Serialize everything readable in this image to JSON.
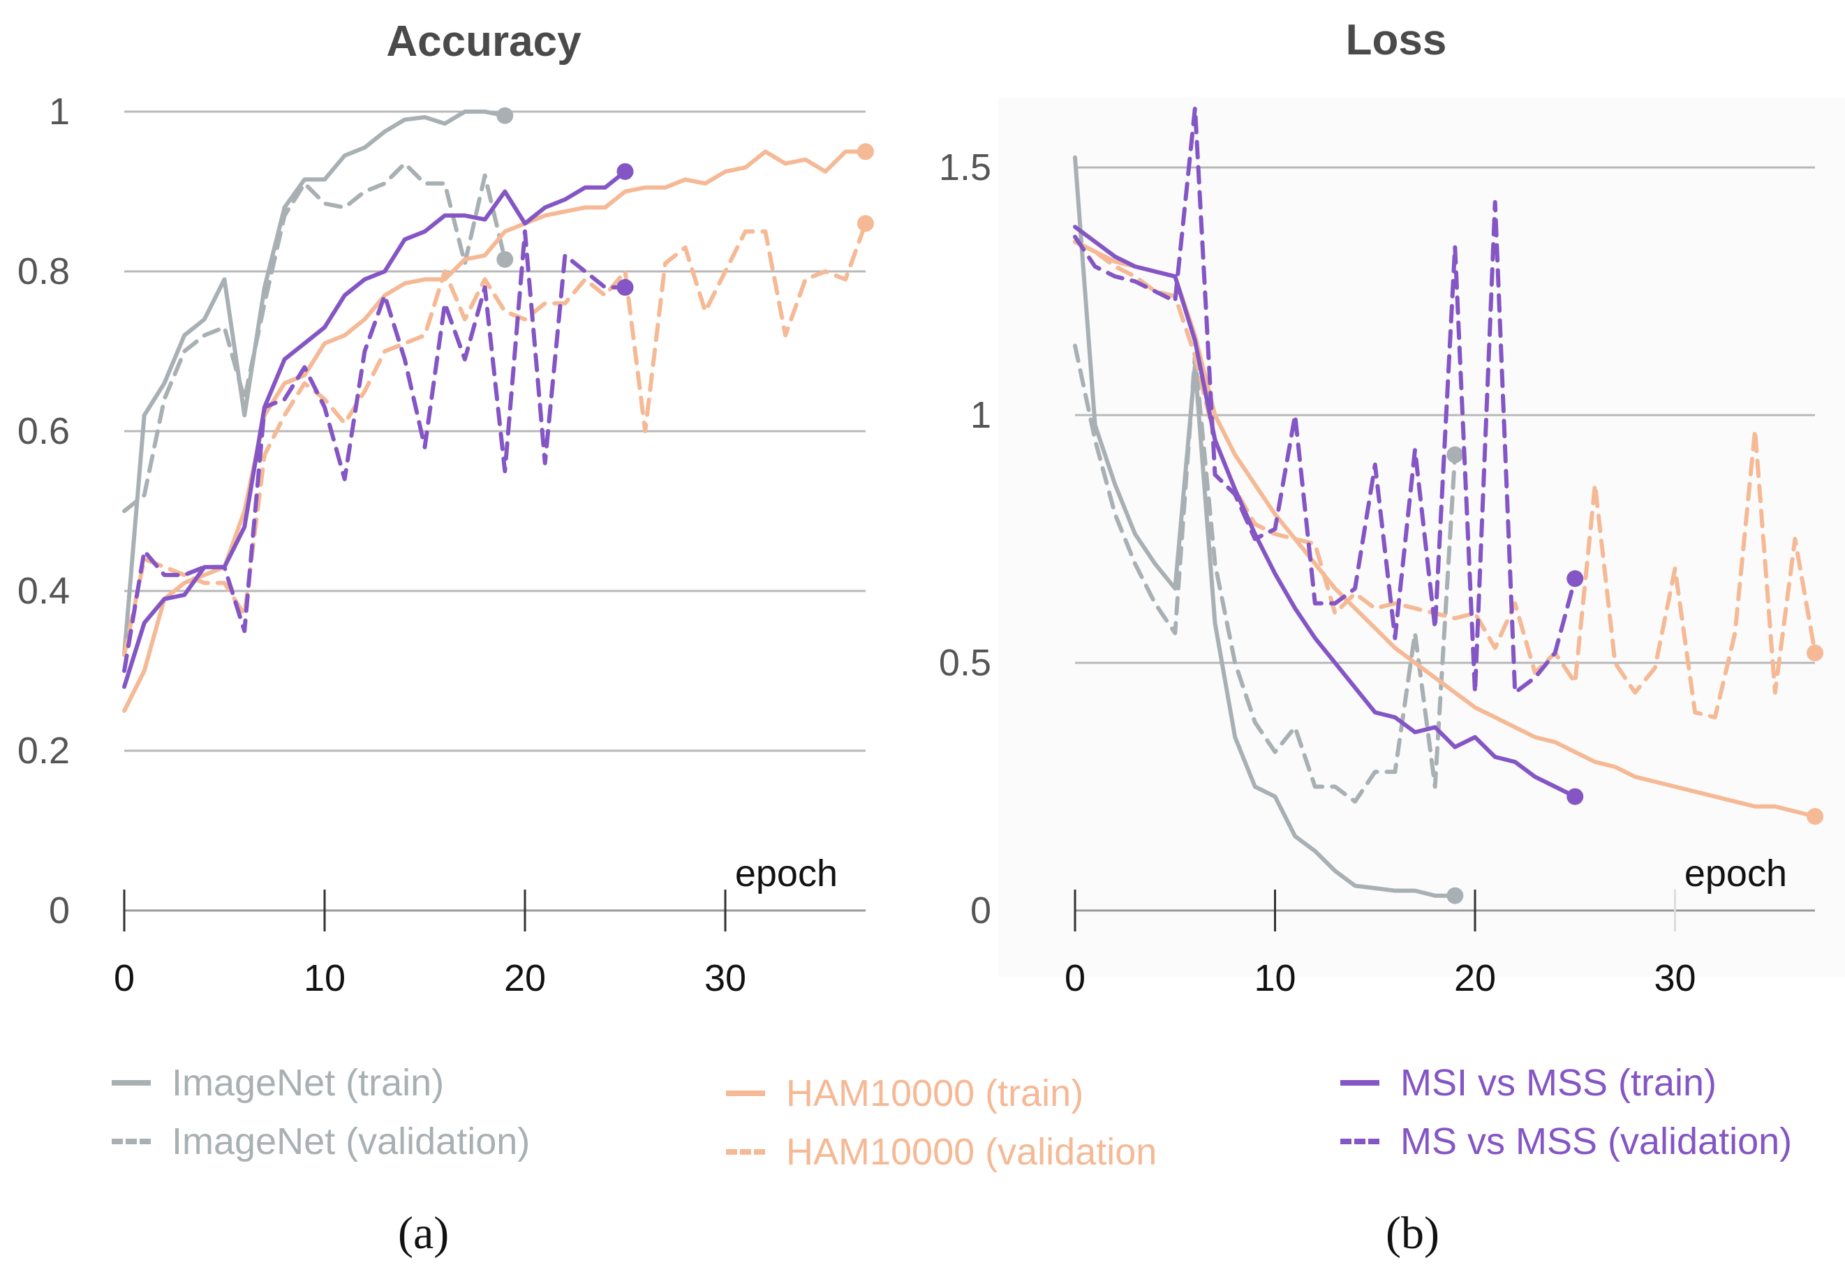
{
  "captions": {
    "a": "(a)",
    "b": "(b)"
  },
  "colors": {
    "imagenet": "#a9b0b3",
    "ham10000": "#f5b995",
    "msi": "#8455c4"
  },
  "legend": [
    {
      "label": "ImageNet (train)",
      "color": "#a9b0b3",
      "style": "solid"
    },
    {
      "label": "ImageNet (validation)",
      "color": "#a9b0b3",
      "style": "dashed"
    },
    {
      "label": "HAM10000 (train)",
      "color": "#f5b995",
      "style": "solid"
    },
    {
      "label": "HAM10000 (validation",
      "color": "#f5b995",
      "style": "dashed"
    },
    {
      "label": "MSI vs MSS (train)",
      "color": "#8455c4",
      "style": "solid"
    },
    {
      "label": "MS vs MSS (validation)",
      "color": "#8455c4",
      "style": "dashed"
    }
  ],
  "chart_data": [
    {
      "type": "line",
      "title": "Accuracy",
      "xlabel": "epoch",
      "ylabel": "",
      "xlim": [
        0,
        37
      ],
      "ylim": [
        0,
        1
      ],
      "xticks": [
        "0",
        "10",
        "20",
        "30"
      ],
      "yticks": [
        "0",
        "0.2",
        "0.4",
        "0.6",
        "0.8",
        "1"
      ],
      "grid": true,
      "series": [
        {
          "name": "ImageNet (train)",
          "color": "#a9b0b3",
          "dashed": false,
          "x": [
            0,
            1,
            2,
            3,
            4,
            5,
            6,
            7,
            8,
            9,
            10,
            11,
            12,
            13,
            14,
            15,
            16,
            17,
            18,
            19
          ],
          "y": [
            0.32,
            0.62,
            0.66,
            0.72,
            0.74,
            0.79,
            0.62,
            0.78,
            0.88,
            0.915,
            0.915,
            0.945,
            0.955,
            0.975,
            0.99,
            0.993,
            0.985,
            1.0,
            1.0,
            0.995
          ]
        },
        {
          "name": "ImageNet (validation)",
          "color": "#a9b0b3",
          "dashed": true,
          "x": [
            0,
            1,
            2,
            3,
            4,
            5,
            6,
            7,
            8,
            9,
            10,
            11,
            12,
            13,
            14,
            15,
            16,
            17,
            18,
            19
          ],
          "y": [
            0.5,
            0.52,
            0.64,
            0.7,
            0.72,
            0.73,
            0.64,
            0.76,
            0.87,
            0.91,
            0.885,
            0.88,
            0.9,
            0.91,
            0.935,
            0.91,
            0.91,
            0.81,
            0.92,
            0.815
          ]
        },
        {
          "name": "HAM10000 (train)",
          "color": "#f5b995",
          "dashed": false,
          "x": [
            0,
            1,
            2,
            3,
            4,
            5,
            6,
            7,
            8,
            9,
            10,
            11,
            12,
            13,
            14,
            15,
            16,
            17,
            18,
            19,
            20,
            21,
            22,
            23,
            24,
            25,
            26,
            27,
            28,
            29,
            30,
            31,
            32,
            33,
            34,
            35,
            36,
            37
          ],
          "y": [
            0.25,
            0.3,
            0.39,
            0.41,
            0.42,
            0.43,
            0.5,
            0.62,
            0.66,
            0.67,
            0.71,
            0.72,
            0.74,
            0.77,
            0.785,
            0.79,
            0.79,
            0.815,
            0.82,
            0.85,
            0.86,
            0.87,
            0.875,
            0.88,
            0.88,
            0.9,
            0.905,
            0.905,
            0.915,
            0.91,
            0.925,
            0.93,
            0.95,
            0.935,
            0.94,
            0.925,
            0.95,
            0.95
          ]
        },
        {
          "name": "HAM10000 (validation",
          "color": "#f5b995",
          "dashed": true,
          "x": [
            0,
            1,
            2,
            3,
            4,
            5,
            6,
            7,
            8,
            9,
            10,
            11,
            12,
            13,
            14,
            15,
            16,
            17,
            18,
            19,
            20,
            21,
            22,
            23,
            24,
            25,
            26,
            27,
            28,
            29,
            30,
            31,
            32,
            33,
            34,
            35,
            36,
            37
          ],
          "y": [
            0.32,
            0.44,
            0.43,
            0.42,
            0.41,
            0.41,
            0.37,
            0.57,
            0.62,
            0.66,
            0.64,
            0.61,
            0.65,
            0.7,
            0.71,
            0.72,
            0.8,
            0.74,
            0.79,
            0.75,
            0.74,
            0.76,
            0.76,
            0.79,
            0.77,
            0.8,
            0.6,
            0.81,
            0.83,
            0.75,
            0.8,
            0.85,
            0.85,
            0.72,
            0.79,
            0.8,
            0.79,
            0.86
          ]
        },
        {
          "name": "MSI vs MSS (train)",
          "color": "#8455c4",
          "dashed": false,
          "x": [
            0,
            1,
            2,
            3,
            4,
            5,
            6,
            7,
            8,
            9,
            10,
            11,
            12,
            13,
            14,
            15,
            16,
            17,
            18,
            19,
            20,
            21,
            22,
            23,
            24,
            25
          ],
          "y": [
            0.28,
            0.36,
            0.39,
            0.395,
            0.43,
            0.43,
            0.48,
            0.63,
            0.69,
            0.71,
            0.73,
            0.77,
            0.79,
            0.8,
            0.84,
            0.85,
            0.87,
            0.87,
            0.865,
            0.9,
            0.86,
            0.88,
            0.89,
            0.905,
            0.905,
            0.925
          ]
        },
        {
          "name": "MS vs MSS (validation)",
          "color": "#8455c4",
          "dashed": true,
          "x": [
            0,
            1,
            2,
            3,
            4,
            5,
            6,
            7,
            8,
            9,
            10,
            11,
            12,
            13,
            14,
            15,
            16,
            17,
            18,
            19,
            20,
            21,
            22,
            23,
            24,
            25
          ],
          "y": [
            0.3,
            0.45,
            0.42,
            0.42,
            0.43,
            0.43,
            0.35,
            0.63,
            0.64,
            0.68,
            0.63,
            0.54,
            0.7,
            0.77,
            0.69,
            0.58,
            0.76,
            0.69,
            0.78,
            0.55,
            0.85,
            0.56,
            0.82,
            0.8,
            0.78,
            0.78
          ]
        }
      ]
    },
    {
      "type": "line",
      "title": "Loss",
      "xlabel": "epoch",
      "ylabel": "",
      "xlim": [
        0,
        37
      ],
      "ylim": [
        0,
        1.5
      ],
      "xticks": [
        "0",
        "10",
        "20",
        "30"
      ],
      "yticks": [
        "0",
        "0.5",
        "1",
        "1.5"
      ],
      "grid": true,
      "series": [
        {
          "name": "ImageNet (train)",
          "color": "#a9b0b3",
          "dashed": false,
          "x": [
            0,
            1,
            2,
            3,
            4,
            5,
            6,
            7,
            8,
            9,
            10,
            11,
            12,
            13,
            14,
            15,
            16,
            17,
            18,
            19
          ],
          "y": [
            1.52,
            0.98,
            0.86,
            0.76,
            0.7,
            0.65,
            1.1,
            0.58,
            0.35,
            0.25,
            0.23,
            0.15,
            0.12,
            0.08,
            0.05,
            0.045,
            0.04,
            0.04,
            0.03,
            0.03
          ]
        },
        {
          "name": "ImageNet (validation)",
          "color": "#a9b0b3",
          "dashed": true,
          "x": [
            0,
            1,
            2,
            3,
            4,
            5,
            6,
            7,
            8,
            9,
            10,
            11,
            12,
            13,
            14,
            15,
            16,
            17,
            18,
            19
          ],
          "y": [
            1.14,
            0.95,
            0.8,
            0.7,
            0.62,
            0.56,
            1.12,
            0.7,
            0.5,
            0.38,
            0.32,
            0.37,
            0.25,
            0.25,
            0.22,
            0.28,
            0.28,
            0.56,
            0.25,
            0.92
          ]
        },
        {
          "name": "HAM10000 (train)",
          "color": "#f5b995",
          "dashed": false,
          "x": [
            0,
            1,
            2,
            3,
            4,
            5,
            6,
            7,
            8,
            9,
            10,
            11,
            12,
            13,
            14,
            15,
            16,
            17,
            18,
            19,
            20,
            21,
            22,
            23,
            24,
            25,
            26,
            27,
            28,
            29,
            30,
            31,
            32,
            33,
            34,
            35,
            36,
            37
          ],
          "y": [
            1.35,
            1.33,
            1.31,
            1.3,
            1.29,
            1.28,
            1.16,
            1.0,
            0.92,
            0.86,
            0.8,
            0.75,
            0.7,
            0.65,
            0.61,
            0.57,
            0.53,
            0.5,
            0.47,
            0.44,
            0.41,
            0.39,
            0.37,
            0.35,
            0.34,
            0.32,
            0.3,
            0.29,
            0.27,
            0.26,
            0.25,
            0.24,
            0.23,
            0.22,
            0.21,
            0.21,
            0.2,
            0.19
          ]
        },
        {
          "name": "HAM10000 (validation",
          "color": "#f5b995",
          "dashed": true,
          "x": [
            0,
            1,
            2,
            3,
            4,
            5,
            6,
            7,
            8,
            9,
            10,
            11,
            12,
            13,
            14,
            15,
            16,
            17,
            18,
            19,
            20,
            21,
            22,
            23,
            24,
            25,
            26,
            27,
            28,
            29,
            30,
            31,
            32,
            33,
            34,
            35,
            36,
            37
          ],
          "y": [
            1.35,
            1.33,
            1.3,
            1.28,
            1.25,
            1.24,
            1.12,
            0.95,
            0.85,
            0.78,
            0.76,
            0.75,
            0.74,
            0.6,
            0.64,
            0.61,
            0.62,
            0.61,
            0.6,
            0.59,
            0.6,
            0.53,
            0.62,
            0.48,
            0.52,
            0.46,
            0.86,
            0.5,
            0.44,
            0.49,
            0.69,
            0.4,
            0.39,
            0.56,
            0.97,
            0.44,
            0.75,
            0.52
          ]
        },
        {
          "name": "MSI vs MSS (train)",
          "color": "#8455c4",
          "dashed": false,
          "x": [
            0,
            1,
            2,
            3,
            4,
            5,
            6,
            7,
            8,
            9,
            10,
            11,
            12,
            13,
            14,
            15,
            16,
            17,
            18,
            19,
            20,
            21,
            22,
            23,
            24,
            25
          ],
          "y": [
            1.38,
            1.35,
            1.32,
            1.3,
            1.29,
            1.28,
            1.15,
            0.95,
            0.85,
            0.76,
            0.68,
            0.61,
            0.55,
            0.5,
            0.45,
            0.4,
            0.39,
            0.36,
            0.37,
            0.33,
            0.35,
            0.31,
            0.3,
            0.27,
            0.25,
            0.23
          ]
        },
        {
          "name": "MS vs MSS (validation)",
          "color": "#8455c4",
          "dashed": true,
          "x": [
            0,
            1,
            2,
            3,
            4,
            5,
            6,
            7,
            8,
            9,
            10,
            11,
            12,
            13,
            14,
            15,
            16,
            17,
            18,
            19,
            20,
            21,
            22,
            23,
            24,
            25
          ],
          "y": [
            1.36,
            1.3,
            1.28,
            1.27,
            1.25,
            1.23,
            1.62,
            0.88,
            0.84,
            0.75,
            0.77,
            1.0,
            0.62,
            0.62,
            0.65,
            0.9,
            0.55,
            0.93,
            0.57,
            1.34,
            0.44,
            1.43,
            0.44,
            0.47,
            0.52,
            0.67
          ]
        }
      ]
    }
  ]
}
